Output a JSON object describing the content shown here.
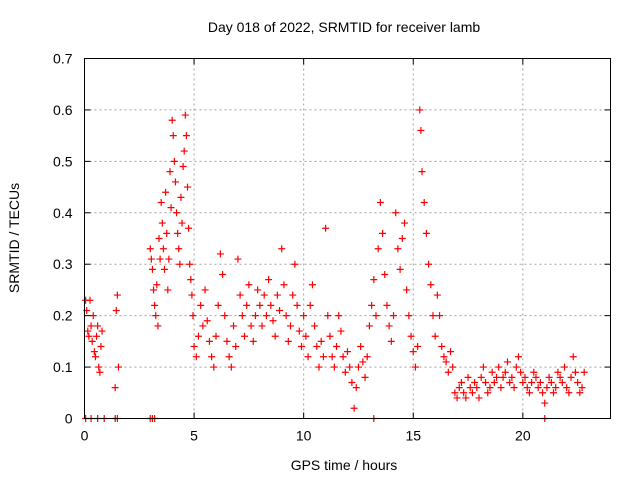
{
  "chart_data": {
    "type": "scatter",
    "title": "Day 018 of 2022, SRMTID for receiver lamb",
    "xlabel": "GPS time / hours",
    "ylabel": "SRMTID / TECUs",
    "xlim": [
      0,
      24
    ],
    "ylim": [
      0,
      0.7
    ],
    "grid": true,
    "x_ticks": [
      0,
      5,
      10,
      15,
      20
    ],
    "x_tick_labels": [
      "0",
      "5",
      "10",
      "15",
      "20"
    ],
    "y_ticks": [
      0,
      0.1,
      0.2,
      0.3,
      0.4,
      0.5,
      0.6,
      0.7
    ],
    "y_tick_labels": [
      "0",
      "0.1",
      "0.2",
      "0.3",
      "0.4",
      "0.5",
      "0.6",
      "0.7"
    ],
    "marker": "plus",
    "color": "#ff0000",
    "series": [
      {
        "name": "SRMTID",
        "x": [
          0.05,
          0.1,
          0.15,
          0.2,
          0.25,
          0.3,
          0.35,
          0.4,
          0.45,
          0.5,
          0.55,
          0.6,
          0.65,
          0.7,
          0.75,
          0.8,
          1.4,
          1.45,
          1.5,
          1.55,
          3.0,
          3.05,
          3.1,
          3.15,
          3.2,
          3.25,
          3.3,
          3.35,
          3.4,
          3.45,
          3.5,
          3.55,
          3.6,
          3.65,
          3.7,
          3.75,
          3.8,
          3.85,
          3.9,
          3.95,
          4.0,
          4.05,
          4.1,
          4.15,
          4.2,
          4.25,
          4.3,
          4.35,
          4.4,
          4.45,
          4.5,
          4.55,
          4.6,
          4.65,
          4.7,
          4.75,
          4.8,
          4.85,
          4.9,
          4.95,
          5.0,
          5.1,
          5.2,
          5.3,
          5.4,
          5.5,
          5.6,
          5.7,
          5.8,
          5.9,
          6.0,
          6.1,
          6.2,
          6.3,
          6.4,
          6.5,
          6.6,
          6.7,
          6.8,
          6.9,
          7.0,
          7.1,
          7.2,
          7.3,
          7.4,
          7.5,
          7.6,
          7.7,
          7.8,
          7.9,
          8.0,
          8.1,
          8.2,
          8.3,
          8.4,
          8.5,
          8.6,
          8.7,
          8.8,
          8.9,
          9.0,
          9.1,
          9.2,
          9.3,
          9.4,
          9.5,
          9.6,
          9.7,
          9.8,
          9.9,
          10.0,
          10.1,
          10.2,
          10.3,
          10.4,
          10.5,
          10.6,
          10.7,
          10.8,
          10.9,
          11.0,
          11.1,
          11.2,
          11.3,
          11.4,
          11.5,
          11.6,
          11.7,
          11.8,
          11.9,
          12.0,
          12.1,
          12.2,
          12.3,
          12.4,
          12.5,
          12.6,
          12.7,
          12.8,
          12.9,
          13.0,
          13.1,
          13.2,
          13.3,
          13.4,
          13.5,
          13.6,
          13.7,
          13.8,
          13.9,
          14.0,
          14.1,
          14.2,
          14.3,
          14.4,
          14.5,
          14.6,
          14.7,
          14.8,
          14.9,
          15.0,
          15.1,
          15.2,
          15.3,
          15.35,
          15.4,
          15.5,
          15.6,
          15.7,
          15.8,
          15.9,
          16.0,
          16.1,
          16.2,
          16.3,
          16.4,
          16.5,
          16.6,
          16.7,
          16.8,
          16.9,
          17.0,
          17.1,
          17.2,
          17.3,
          17.4,
          17.5,
          17.6,
          17.7,
          17.8,
          17.9,
          18.0,
          18.1,
          18.2,
          18.3,
          18.4,
          18.5,
          18.6,
          18.7,
          18.8,
          18.9,
          19.0,
          19.1,
          19.2,
          19.3,
          19.4,
          19.5,
          19.6,
          19.7,
          19.8,
          19.9,
          20.0,
          20.1,
          20.2,
          20.3,
          20.4,
          20.5,
          20.6,
          20.7,
          20.8,
          20.9,
          21.0,
          21.1,
          21.2,
          21.3,
          21.4,
          21.5,
          21.6,
          21.7,
          21.8,
          21.9,
          22.0,
          22.1,
          22.2,
          22.3,
          22.4,
          22.5,
          22.6,
          22.7,
          22.8,
          0.05,
          0.3,
          0.6,
          0.9,
          1.4,
          1.5,
          3.0,
          3.1,
          3.2,
          13.2,
          21.0
        ],
        "y": [
          0.23,
          0.21,
          0.17,
          0.16,
          0.23,
          0.18,
          0.15,
          0.2,
          0.13,
          0.12,
          0.16,
          0.18,
          0.1,
          0.09,
          0.14,
          0.17,
          0.06,
          0.21,
          0.24,
          0.1,
          0.33,
          0.31,
          0.29,
          0.25,
          0.22,
          0.2,
          0.26,
          0.18,
          0.35,
          0.31,
          0.42,
          0.38,
          0.33,
          0.29,
          0.44,
          0.36,
          0.25,
          0.31,
          0.48,
          0.41,
          0.58,
          0.55,
          0.5,
          0.46,
          0.4,
          0.36,
          0.33,
          0.3,
          0.43,
          0.38,
          0.49,
          0.52,
          0.59,
          0.55,
          0.45,
          0.37,
          0.3,
          0.27,
          0.24,
          0.2,
          0.14,
          0.12,
          0.16,
          0.22,
          0.18,
          0.25,
          0.19,
          0.15,
          0.12,
          0.1,
          0.16,
          0.22,
          0.32,
          0.28,
          0.2,
          0.15,
          0.12,
          0.1,
          0.18,
          0.14,
          0.31,
          0.24,
          0.2,
          0.16,
          0.22,
          0.26,
          0.18,
          0.15,
          0.2,
          0.25,
          0.22,
          0.18,
          0.24,
          0.2,
          0.27,
          0.22,
          0.19,
          0.16,
          0.24,
          0.21,
          0.33,
          0.26,
          0.2,
          0.15,
          0.18,
          0.24,
          0.3,
          0.22,
          0.17,
          0.14,
          0.2,
          0.16,
          0.12,
          0.22,
          0.26,
          0.18,
          0.14,
          0.1,
          0.15,
          0.12,
          0.37,
          0.2,
          0.16,
          0.12,
          0.1,
          0.14,
          0.2,
          0.17,
          0.12,
          0.09,
          0.13,
          0.1,
          0.07,
          0.02,
          0.06,
          0.1,
          0.14,
          0.11,
          0.08,
          0.12,
          0.18,
          0.22,
          0.27,
          0.2,
          0.33,
          0.42,
          0.36,
          0.28,
          0.22,
          0.18,
          0.15,
          0.2,
          0.4,
          0.33,
          0.29,
          0.35,
          0.38,
          0.25,
          0.2,
          0.16,
          0.13,
          0.1,
          0.14,
          0.6,
          0.56,
          0.48,
          0.42,
          0.36,
          0.3,
          0.26,
          0.2,
          0.16,
          0.24,
          0.2,
          0.14,
          0.12,
          0.11,
          0.09,
          0.13,
          0.1,
          0.05,
          0.04,
          0.06,
          0.07,
          0.05,
          0.04,
          0.08,
          0.06,
          0.05,
          0.07,
          0.06,
          0.04,
          0.08,
          0.1,
          0.07,
          0.05,
          0.06,
          0.09,
          0.07,
          0.08,
          0.1,
          0.06,
          0.08,
          0.09,
          0.11,
          0.07,
          0.08,
          0.06,
          0.1,
          0.12,
          0.09,
          0.07,
          0.08,
          0.06,
          0.05,
          0.07,
          0.09,
          0.08,
          0.06,
          0.07,
          0.05,
          0.03,
          0.06,
          0.08,
          0.07,
          0.05,
          0.06,
          0.09,
          0.08,
          0.07,
          0.1,
          0.06,
          0.05,
          0.08,
          0.12,
          0.09,
          0.07,
          0.05,
          0.06,
          0.09,
          0,
          0,
          0,
          0,
          0,
          0,
          0,
          0,
          0,
          0,
          0
        ]
      }
    ]
  }
}
